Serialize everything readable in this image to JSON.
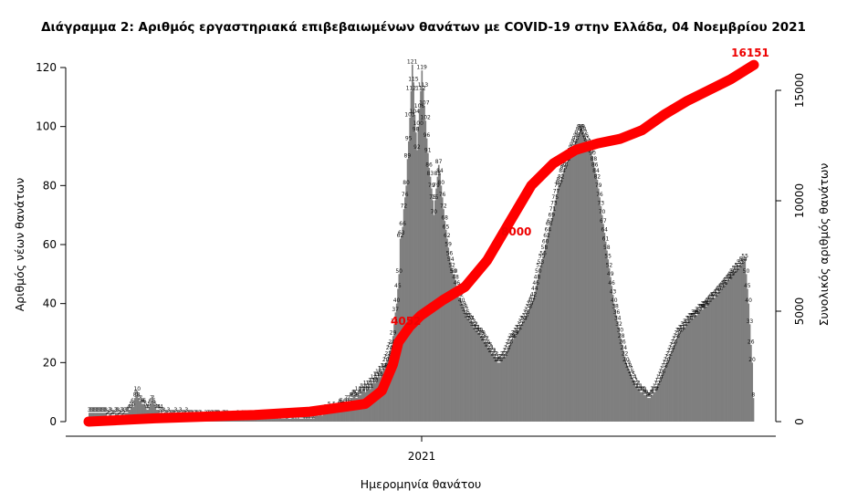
{
  "chart_data": {
    "type": "bar",
    "title": "Διάγραμμα 2: Αριθμός εργαστηριακά επιβεβαιωμένων θανάτων με COVID-19 στην Ελλάδα, 04 Νοεμβρίου 2021",
    "xlabel": "Ημερομηνία θανάτου",
    "ylabel": "Αριθμός νέων θανάτων",
    "y2label": "Συνολικός αριθμός θανάτων",
    "x_ticks": [
      "2021"
    ],
    "y_ticks": [
      0,
      20,
      40,
      60,
      80,
      100,
      120
    ],
    "y2_ticks": [
      0,
      5000,
      10000,
      15000
    ],
    "ylim": [
      0,
      120
    ],
    "y2lim": [
      0,
      15000
    ],
    "bar_color": "#7f7f7f",
    "line_color": "#ff0000",
    "annotations": [
      "4052",
      "8000",
      "16151"
    ],
    "series": [
      {
        "type": "bar",
        "axis": "left",
        "values": [
          3,
          3,
          3,
          3,
          3,
          3,
          3,
          3,
          3,
          3,
          3,
          3,
          3,
          3,
          3,
          2,
          2,
          3,
          3,
          2,
          2,
          2,
          3,
          3,
          3,
          2,
          2,
          3,
          3,
          2,
          3,
          3,
          3,
          4,
          4,
          5,
          6,
          5,
          8,
          9,
          10,
          8,
          7,
          7,
          6,
          6,
          6,
          5,
          4,
          4,
          5,
          6,
          7,
          7,
          6,
          5,
          4,
          4,
          4,
          3,
          4,
          3,
          3,
          2,
          2,
          2,
          3,
          2,
          2,
          2,
          2,
          2,
          3,
          2,
          2,
          2,
          3,
          2,
          2,
          2,
          2,
          3,
          2,
          2,
          2,
          2,
          2,
          1,
          2,
          2,
          2,
          1,
          2,
          2,
          1,
          1,
          1,
          2,
          1,
          2,
          2,
          1,
          2,
          2,
          1,
          2,
          2,
          2,
          2,
          1,
          1,
          1,
          2,
          2,
          1,
          2,
          1,
          1,
          1,
          1,
          1,
          1,
          1,
          1,
          2,
          1,
          1,
          1,
          2,
          1,
          2,
          1,
          2,
          1,
          1,
          2,
          1,
          1,
          2,
          1,
          1,
          1,
          2,
          1,
          1,
          1,
          2,
          2,
          1,
          1,
          2,
          2,
          2,
          1,
          2,
          2,
          2,
          2,
          1,
          2,
          1,
          1,
          1,
          1,
          2,
          2,
          1,
          1,
          1,
          2,
          2,
          1,
          2,
          1,
          2,
          1,
          1,
          1,
          1,
          2,
          1,
          2,
          1,
          2,
          1,
          1,
          2,
          1,
          2,
          2,
          2,
          2,
          3,
          3,
          2,
          3,
          4,
          3,
          3,
          4,
          5,
          4,
          4,
          4,
          5,
          4,
          4,
          4,
          5,
          6,
          6,
          5,
          5,
          6,
          7,
          6,
          7,
          6,
          8,
          8,
          9,
          9,
          8,
          8,
          10,
          9,
          9,
          10,
          11,
          11,
          10,
          12,
          11,
          12,
          11,
          13,
          13,
          14,
          13,
          15,
          15,
          16,
          15,
          17,
          17,
          18,
          18,
          20,
          21,
          22,
          24,
          25,
          26,
          29,
          33,
          37,
          40,
          45,
          50,
          62,
          63,
          66,
          72,
          76,
          80,
          89,
          95,
          103,
          112,
          121,
          115,
          104,
          98,
          92,
          100,
          106,
          112,
          119,
          113,
          107,
          102,
          96,
          91,
          86,
          83,
          79,
          75,
          70,
          75,
          79,
          83,
          87,
          84,
          80,
          76,
          72,
          68,
          65,
          62,
          59,
          56,
          54,
          52,
          50,
          50,
          48,
          46,
          44,
          42,
          42,
          40,
          39,
          38,
          37,
          36,
          35,
          35,
          34,
          34,
          33,
          32,
          32,
          31,
          31,
          30,
          30,
          29,
          29,
          28,
          27,
          27,
          26,
          25,
          25,
          24,
          23,
          23,
          22,
          22,
          21,
          20,
          20,
          20,
          21,
          21,
          22,
          22,
          23,
          24,
          25,
          26,
          27,
          28,
          28,
          29,
          29,
          30,
          31,
          31,
          32,
          33,
          34,
          34,
          35,
          36,
          37,
          38,
          39,
          40,
          41,
          42,
          44,
          46,
          48,
          50,
          52,
          53,
          55,
          56,
          58,
          60,
          62,
          64,
          66,
          67,
          69,
          71,
          73,
          75,
          77,
          79,
          80,
          81,
          82,
          84,
          85,
          86,
          87,
          88,
          89,
          90,
          91,
          92,
          93,
          94,
          95,
          96,
          97,
          98,
          99,
          99,
          98,
          97,
          96,
          95,
          94,
          93,
          92,
          91,
          90,
          88,
          86,
          84,
          82,
          79,
          76,
          73,
          70,
          67,
          64,
          61,
          58,
          55,
          52,
          49,
          46,
          43,
          40,
          38,
          36,
          34,
          32,
          30,
          28,
          26,
          24,
          22,
          20,
          19,
          18,
          17,
          16,
          15,
          14,
          13,
          12,
          12,
          11,
          11,
          10,
          10,
          10,
          9,
          9,
          9,
          8,
          8,
          8,
          9,
          9,
          10,
          10,
          11,
          12,
          13,
          14,
          15,
          16,
          17,
          18,
          19,
          20,
          21,
          22,
          23,
          24,
          25,
          26,
          27,
          28,
          29,
          30,
          30,
          31,
          31,
          32,
          32,
          33,
          33,
          34,
          34,
          35,
          35,
          35,
          36,
          36,
          36,
          37,
          37,
          38,
          38,
          38,
          39,
          39,
          39,
          40,
          40,
          41,
          41,
          42,
          42,
          42,
          43,
          43,
          44,
          44,
          45,
          45,
          46,
          46,
          47,
          47,
          48,
          48,
          49,
          49,
          50,
          50,
          51,
          51,
          52,
          52,
          53,
          53,
          54,
          54,
          55,
          50,
          45,
          40,
          33,
          26,
          20,
          8
        ]
      },
      {
        "type": "line",
        "axis": "right",
        "x": [
          0,
          60,
          150,
          200,
          250,
          265,
          275,
          280,
          290,
          300,
          320,
          340,
          360,
          380,
          400,
          420,
          440,
          460,
          480,
          500,
          520,
          540,
          560,
          580,
          601
        ],
        "values": [
          0,
          150,
          300,
          450,
          800,
          1400,
          2600,
          3600,
          4300,
          4800,
          5500,
          6100,
          7300,
          9000,
          10700,
          11700,
          12300,
          12600,
          12800,
          13200,
          13900,
          14500,
          15000,
          15500,
          16151
        ]
      }
    ]
  }
}
